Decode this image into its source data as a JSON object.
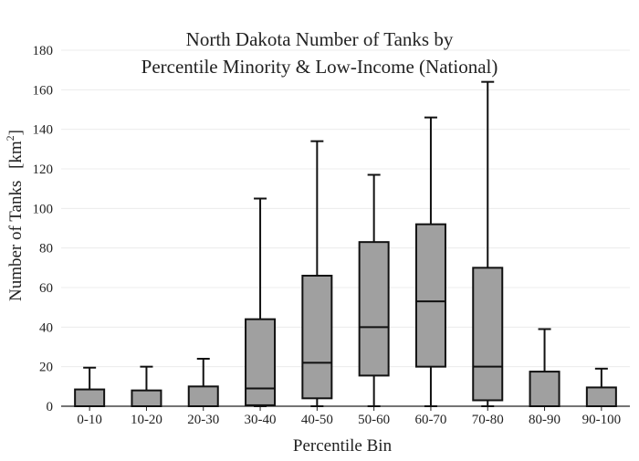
{
  "chart_data": {
    "type": "box",
    "title_lines": [
      "North Dakota Number of Tanks by",
      "Percentile Minority & Low-Income (National)"
    ],
    "xlabel": "Percentile Bin",
    "ylabel": "Number of Tanks",
    "ylabel_unit": "[km",
    "ylabel_unit_sup": "2",
    "ylabel_unit_close": "]",
    "ylim": [
      0,
      180
    ],
    "y_ticks": [
      "0",
      "20",
      "40",
      "60",
      "80",
      "100",
      "120",
      "140",
      "160",
      "180"
    ],
    "grid": true,
    "box_fill": "#a0a0a0",
    "box_stroke": "#111111",
    "categories": [
      "0-10",
      "10-20",
      "20-30",
      "30-40",
      "40-50",
      "50-60",
      "60-70",
      "70-80",
      "80-90",
      "90-100"
    ],
    "boxes": [
      {
        "min": 0,
        "q1": 0,
        "median": 0,
        "q3": 8.5,
        "max": 19.5
      },
      {
        "min": 0,
        "q1": 0,
        "median": 0,
        "q3": 8,
        "max": 20
      },
      {
        "min": 0,
        "q1": 0,
        "median": 0,
        "q3": 10,
        "max": 24
      },
      {
        "min": 0,
        "q1": 0.5,
        "median": 9,
        "q3": 44,
        "max": 105
      },
      {
        "min": 0,
        "q1": 4,
        "median": 22,
        "q3": 66,
        "max": 134
      },
      {
        "min": 0,
        "q1": 15.5,
        "median": 40,
        "q3": 83,
        "max": 117
      },
      {
        "min": 0,
        "q1": 20,
        "median": 53,
        "q3": 92,
        "max": 146
      },
      {
        "min": 0,
        "q1": 3,
        "median": 20,
        "q3": 70,
        "max": 164
      },
      {
        "min": 0,
        "q1": 0,
        "median": 0,
        "q3": 17.5,
        "max": 39
      },
      {
        "min": 0,
        "q1": 0,
        "median": 0,
        "q3": 9.5,
        "max": 19
      }
    ]
  }
}
